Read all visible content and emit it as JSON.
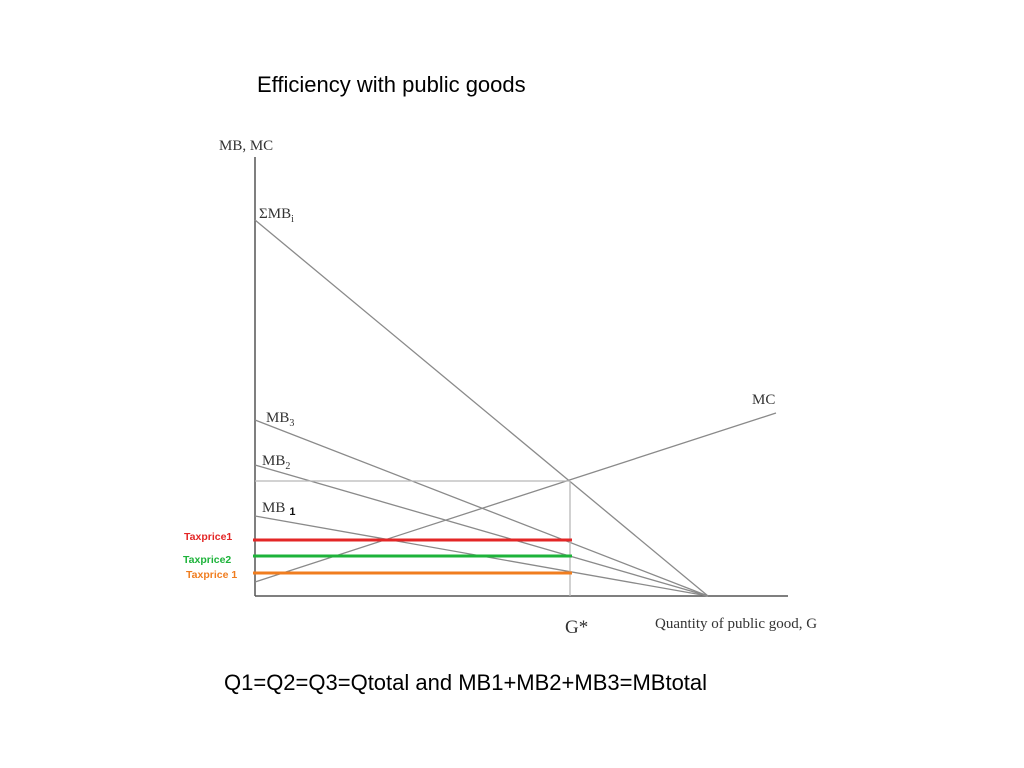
{
  "title": "Efficiency with public goods",
  "caption": "Q1=Q2=Q3=Qtotal and MB1+MB2+MB3=MBtotal",
  "diagram": {
    "y_axis_label": "MB, MC",
    "x_axis_label": "Quantity of public good, G",
    "equilibrium_label": "G*",
    "curves": {
      "sum_mb": {
        "text": "ΣMB",
        "sub": "i"
      },
      "mb3": {
        "text": "MB",
        "sub": "3"
      },
      "mb2": {
        "text": "MB",
        "sub": "2"
      },
      "mb1": {
        "text": "MB",
        "suffix": "1"
      },
      "mc": {
        "text": "MC"
      }
    },
    "tax_lines": [
      {
        "label": "Taxprice1",
        "color": "#e32626"
      },
      {
        "label": "Taxprice2",
        "color": "#1db33a"
      },
      {
        "label": "Taxprice 1",
        "color": "#f07d1f"
      }
    ],
    "colors": {
      "curve": "#8a8a8a",
      "axis": "#555555",
      "guide": "#b8b8b8"
    }
  }
}
